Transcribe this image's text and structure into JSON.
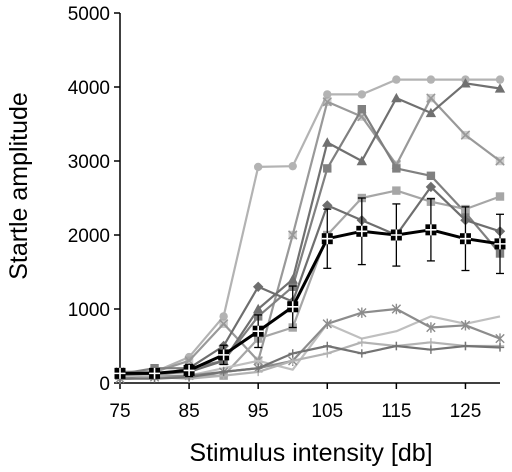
{
  "chart_data": {
    "type": "line",
    "title": "",
    "xlabel": "Stimulus intensity [db]",
    "ylabel": "Startle amplitude",
    "xlim": [
      75,
      130
    ],
    "ylim": [
      0,
      5000
    ],
    "x_ticks": [
      75,
      85,
      95,
      105,
      115,
      125
    ],
    "y_ticks": [
      0,
      1000,
      2000,
      3000,
      4000,
      5000
    ],
    "x_tick_labels": [
      "75",
      "85",
      "95",
      "105",
      "115",
      "125"
    ],
    "y_tick_labels": [
      "0",
      "1000",
      "2000",
      "3000",
      "4000",
      "5000"
    ],
    "grid": false,
    "legend": "none",
    "x": [
      75,
      80,
      85,
      90,
      95,
      100,
      105,
      110,
      115,
      120,
      125,
      130
    ],
    "series": [
      {
        "color": "#b3b3b3",
        "marker": "circle",
        "values": [
          150,
          150,
          350,
          900,
          2920,
          2930,
          3900,
          3900,
          4100,
          4100,
          4100,
          4100
        ]
      },
      {
        "color": "#999999",
        "marker": "x",
        "values": [
          150,
          150,
          300,
          800,
          300,
          2000,
          3800,
          3600,
          2950,
          3850,
          3350,
          3000
        ]
      },
      {
        "color": "#808080",
        "marker": "square",
        "values": [
          120,
          200,
          200,
          300,
          900,
          1300,
          2900,
          3700,
          2900,
          2800,
          2300,
          1750
        ]
      },
      {
        "color": "#707070",
        "marker": "triangle",
        "values": [
          100,
          120,
          150,
          300,
          1000,
          1400,
          3250,
          3000,
          3850,
          3650,
          4050,
          3980
        ]
      },
      {
        "color": "#a6a6a6",
        "marker": "square",
        "values": [
          100,
          100,
          100,
          100,
          600,
          750,
          2000,
          2500,
          2600,
          2450,
          2350,
          2520
        ]
      },
      {
        "color": "#6e6e6e",
        "marker": "diamond",
        "values": [
          100,
          100,
          200,
          500,
          1300,
          1100,
          2400,
          2200,
          2000,
          2650,
          2200,
          2050
        ]
      },
      {
        "color": "#bfbfbf",
        "marker": "none",
        "values": [
          80,
          100,
          100,
          200,
          300,
          180,
          800,
          600,
          700,
          900,
          800,
          900
        ]
      },
      {
        "color": "#8c8c8c",
        "marker": "asterisk",
        "values": [
          60,
          80,
          100,
          150,
          200,
          300,
          800,
          950,
          1000,
          750,
          780,
          600
        ]
      },
      {
        "color": "#b3b3b3",
        "marker": "plus",
        "values": [
          50,
          80,
          60,
          100,
          150,
          300,
          400,
          550,
          500,
          550,
          500,
          500
        ]
      },
      {
        "color": "#737373",
        "marker": "plus",
        "values": [
          60,
          60,
          80,
          150,
          200,
          400,
          500,
          400,
          500,
          450,
          500,
          480
        ]
      },
      {
        "color": "#000000",
        "marker": "square-cross",
        "bold": true,
        "values": [
          130,
          130,
          170,
          380,
          700,
          1030,
          1950,
          2050,
          2000,
          2070,
          1950,
          1880
        ],
        "errors": [
          0,
          0,
          80,
          130,
          220,
          280,
          400,
          450,
          420,
          420,
          430,
          400
        ]
      }
    ]
  }
}
